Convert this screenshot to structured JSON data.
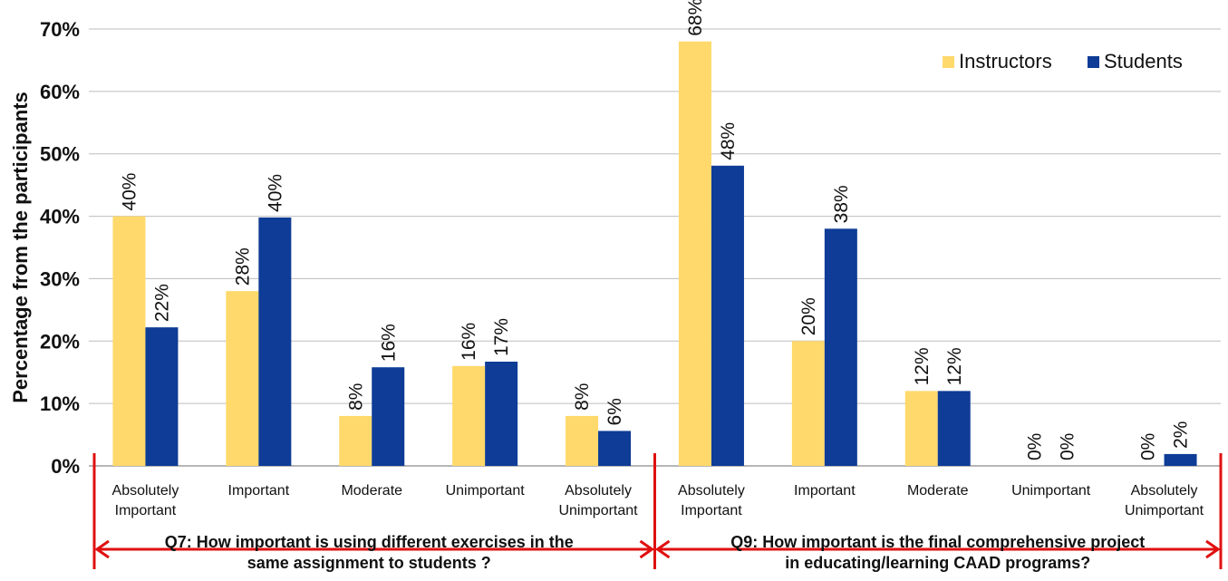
{
  "chart_data": {
    "type": "bar",
    "ylabel": "Percentage from the participants",
    "xlabel": "",
    "ylim": [
      0,
      70
    ],
    "yticks": [
      "0%",
      "10%",
      "20%",
      "30%",
      "40%",
      "50%",
      "60%",
      "70%"
    ],
    "grid": true,
    "legend_position": "top-right",
    "categories": [
      "Absolutely Important",
      "Important",
      "Moderate",
      "Unimportant",
      "Absolutely Unimportant",
      "Absolutely Important",
      "Important",
      "Moderate",
      "Unimportant",
      "Absolutely Unimportant"
    ],
    "category_lines": [
      [
        "Absolutely",
        "Important"
      ],
      [
        "Important"
      ],
      [
        "Moderate"
      ],
      [
        "Unimportant"
      ],
      [
        "Absolutely",
        "Unimportant"
      ],
      [
        "Absolutely",
        "Important"
      ],
      [
        "Important"
      ],
      [
        "Moderate"
      ],
      [
        "Unimportant"
      ],
      [
        "Absolutely",
        "Unimportant"
      ]
    ],
    "series": [
      {
        "name": "Instructors",
        "color": "#FFD96B",
        "values": [
          40,
          28,
          8,
          16,
          8,
          68,
          20,
          12,
          0,
          0
        ],
        "labels": [
          "40%",
          "28%",
          "8%",
          "16%",
          "8%",
          "68%",
          "20%",
          "12%",
          "0%",
          "0%"
        ]
      },
      {
        "name": "Students",
        "color": "#0E3C96",
        "values": [
          22.2,
          39.8,
          15.8,
          16.7,
          5.6,
          48.1,
          38,
          12,
          0,
          1.9
        ],
        "labels": [
          "22%",
          "40%",
          "16%",
          "17%",
          "6%",
          "48%",
          "38%",
          "12%",
          "0%",
          "2%"
        ]
      }
    ],
    "groups": [
      {
        "lines": [
          "Q7: How important is using different exercises in the",
          "same assignment to students ?"
        ],
        "category_span": [
          0,
          4
        ]
      },
      {
        "lines": [
          "Q9: How important is the final comprehensive project",
          "in educating/learning CAAD programs?"
        ],
        "category_span": [
          5,
          9
        ]
      }
    ],
    "arrow_color": "#E01010"
  }
}
